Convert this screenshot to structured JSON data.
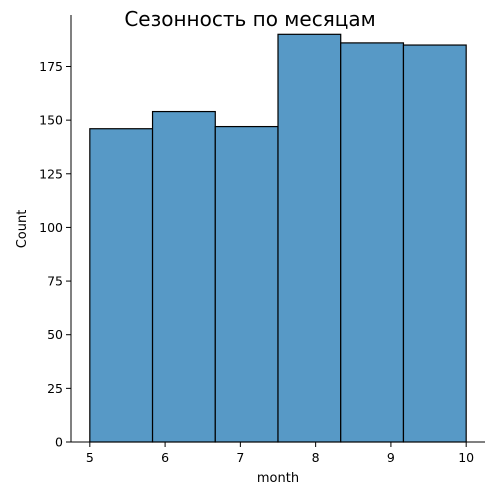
{
  "chart_data": {
    "type": "bar",
    "title": "Сезонность по месяцам",
    "xlabel": "month",
    "ylabel": "Count",
    "bin_edges": [
      5,
      5.8333,
      6.6667,
      7.5,
      8.3333,
      9.1667,
      10
    ],
    "values": [
      146,
      154,
      147,
      190,
      186,
      185
    ],
    "xlim": [
      4.75,
      10.25
    ],
    "ylim": [
      0,
      199
    ],
    "x_ticks": [
      5,
      6,
      7,
      8,
      9,
      10
    ],
    "y_ticks": [
      0,
      25,
      50,
      75,
      100,
      125,
      150,
      175
    ],
    "bar_color": "#5799c6",
    "edge_color": "#000000",
    "grid": false
  }
}
